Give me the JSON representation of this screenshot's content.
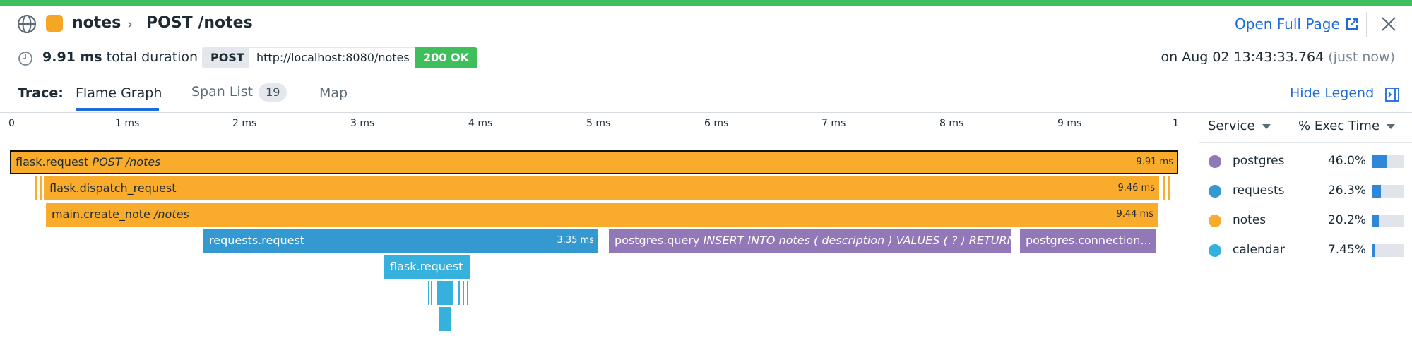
{
  "header": {
    "service": "notes",
    "resource": "POST /notes",
    "open_full_page": "Open Full Page",
    "duration_value": "9.91 ms",
    "duration_suffix": "total duration",
    "method": "POST",
    "url": "http://localhost:8080/notes",
    "status": "200 OK",
    "timestamp": "on Aug 02 13:43:33.764",
    "timestamp_relative": "(just now)"
  },
  "tabs": {
    "label": "Trace:",
    "items": [
      {
        "label": "Flame Graph",
        "active": true
      },
      {
        "label": "Span List",
        "count": "19"
      },
      {
        "label": "Map"
      }
    ],
    "hide_legend": "Hide Legend"
  },
  "axis": {
    "ticks": [
      "0",
      "1 ms",
      "2 ms",
      "3 ms",
      "4 ms",
      "5 ms",
      "6 ms",
      "7 ms",
      "8 ms",
      "9 ms",
      "1"
    ]
  },
  "spans": [
    {
      "name": "flask.request",
      "resource": "POST /notes",
      "duration": "9.91 ms",
      "service": "notes"
    },
    {
      "name": "flask.dispatch_request",
      "resource": "",
      "duration": "9.46 ms",
      "service": "notes"
    },
    {
      "name": "main.create_note",
      "resource": "/notes",
      "duration": "9.44 ms",
      "service": "notes"
    },
    {
      "name": "requests.request",
      "resource": "",
      "duration": "3.35 ms",
      "service": "requests"
    },
    {
      "name": "postgres.query",
      "resource": "INSERT INTO notes ( description ) VALUES ( ? ) RETURNING...",
      "duration": "",
      "service": "postgres"
    },
    {
      "name": "postgres.connection...",
      "resource": "",
      "duration": "",
      "service": "postgres"
    },
    {
      "name": "flask.request",
      "resource": "",
      "duration": "",
      "service": "calendar"
    }
  ],
  "legend": {
    "col_service": "Service",
    "col_exec": "% Exec Time",
    "rows": [
      {
        "service": "postgres",
        "pct": "46.0%",
        "fraction": 0.46,
        "color": "#9378b8"
      },
      {
        "service": "requests",
        "pct": "26.3%",
        "fraction": 0.263,
        "color": "#3399d0"
      },
      {
        "service": "notes",
        "pct": "20.2%",
        "fraction": 0.202,
        "color": "#f9ab2c"
      },
      {
        "service": "calendar",
        "pct": "7.45%",
        "fraction": 0.0745,
        "color": "#36b0dd"
      }
    ]
  },
  "colors": {
    "accent": "#1f6cd6",
    "success": "#3ebf5b"
  }
}
